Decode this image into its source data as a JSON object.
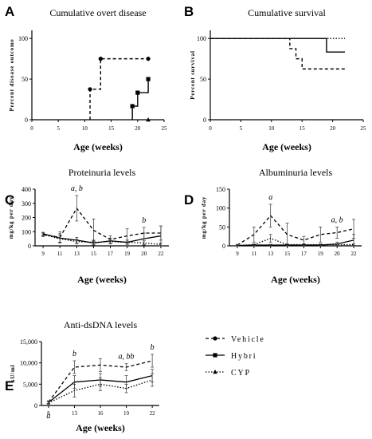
{
  "chart_data": [
    {
      "panel": "A",
      "type": "line",
      "step": true,
      "title": "Cumulative overt disease",
      "xlabel": "Age (weeks)",
      "ylabel": "Percent disease outcome",
      "xlim": [
        0,
        25
      ],
      "ylim": [
        0,
        110
      ],
      "xticks": [
        "0",
        "5",
        "10",
        "15",
        "20",
        "25"
      ],
      "yticks": [
        "0",
        "50",
        "100"
      ],
      "series": [
        {
          "name": "Vehicle",
          "x": [
            11,
            13,
            22
          ],
          "y": [
            37.5,
            75,
            75
          ]
        },
        {
          "name": "Hybri",
          "x": [
            19,
            20,
            22
          ],
          "y": [
            16.7,
            33.3,
            50
          ]
        },
        {
          "name": "CYP",
          "x": [
            22
          ],
          "y": [
            0
          ]
        }
      ]
    },
    {
      "panel": "B",
      "type": "line",
      "step": true,
      "title": "Cumulative survival",
      "xlabel": "Age (weeks)",
      "ylabel": "Percent survival",
      "xlim": [
        0,
        25
      ],
      "ylim": [
        0,
        110
      ],
      "xticks": [
        "0",
        "5",
        "10",
        "15",
        "20",
        "25"
      ],
      "yticks": [
        "0",
        "50",
        "100"
      ],
      "series": [
        {
          "name": "Vehicle",
          "x": [
            0,
            13,
            14,
            15,
            22
          ],
          "y": [
            100,
            87.5,
            75,
            62.5,
            62.5
          ]
        },
        {
          "name": "Hybri",
          "x": [
            0,
            19,
            22
          ],
          "y": [
            100,
            83.3,
            83.3
          ]
        },
        {
          "name": "CYP",
          "x": [
            0,
            20,
            22
          ],
          "y": [
            100,
            100,
            100
          ]
        }
      ]
    },
    {
      "panel": "C",
      "type": "line",
      "title": "Proteinuria levels",
      "xlabel": "Age (weeks)",
      "ylabel": "mg/kg per day",
      "ylim": [
        0,
        400
      ],
      "yticks": [
        "0",
        "100",
        "200",
        "300",
        "400"
      ],
      "categories": [
        "9",
        "11",
        "13",
        "15",
        "17",
        "19",
        "20",
        "22"
      ],
      "series": [
        {
          "name": "Vehicle",
          "values": [
            80,
            60,
            265,
            110,
            45,
            70,
            90,
            90
          ],
          "err": [
            15,
            40,
            90,
            80,
            25,
            50,
            40,
            50
          ]
        },
        {
          "name": "Hybri",
          "values": [
            85,
            55,
            40,
            20,
            35,
            25,
            50,
            70
          ],
          "err": [
            10,
            30,
            20,
            15,
            20,
            15,
            40,
            70
          ]
        },
        {
          "name": "CYP",
          "values": [
            80,
            50,
            30,
            25,
            30,
            25,
            20,
            10
          ],
          "err": [
            10,
            25,
            15,
            15,
            15,
            15,
            15,
            10
          ]
        }
      ],
      "annotations": [
        {
          "text": "a, b",
          "x": "13"
        },
        {
          "text": "b",
          "x": "20"
        }
      ]
    },
    {
      "panel": "D",
      "type": "line",
      "title": "Albuminuria levels",
      "xlabel": "Age (weeks)",
      "ylabel": "mg/kg per day",
      "ylim": [
        0,
        150
      ],
      "yticks": [
        "0",
        "50",
        "100",
        "150"
      ],
      "categories": [
        "9",
        "11",
        "13",
        "15",
        "17",
        "19",
        "20",
        "22"
      ],
      "series": [
        {
          "name": "Vehicle",
          "values": [
            2,
            30,
            80,
            30,
            15,
            30,
            35,
            45
          ],
          "err": [
            2,
            20,
            30,
            30,
            10,
            20,
            15,
            25
          ]
        },
        {
          "name": "Hybri",
          "values": [
            1,
            2,
            2,
            2,
            2,
            2,
            5,
            15
          ],
          "err": [
            1,
            2,
            2,
            2,
            2,
            2,
            5,
            15
          ]
        },
        {
          "name": "CYP",
          "values": [
            1,
            3,
            20,
            3,
            3,
            3,
            3,
            3
          ],
          "err": [
            1,
            2,
            10,
            2,
            2,
            2,
            2,
            2
          ]
        }
      ],
      "annotations": [
        {
          "text": "a",
          "x": "13"
        },
        {
          "text": "a, b",
          "x": "20"
        }
      ]
    },
    {
      "panel": "E",
      "type": "line",
      "title": "Anti-dsDNA levels",
      "xlabel": "Age (weeks)",
      "ylabel": "kU/ml",
      "ylim": [
        0,
        15000
      ],
      "yticks": [
        "0",
        "5,000",
        "10,000",
        "15,000"
      ],
      "categories": [
        "8",
        "13",
        "16",
        "19",
        "22"
      ],
      "series": [
        {
          "name": "Vehicle",
          "values": [
            800,
            9000,
            9500,
            9000,
            10500
          ],
          "err": [
            300,
            1500,
            1500,
            800,
            1500
          ]
        },
        {
          "name": "Hybri",
          "values": [
            700,
            5500,
            6000,
            5500,
            7000
          ],
          "err": [
            300,
            1500,
            1500,
            1500,
            1500
          ]
        },
        {
          "name": "CYP",
          "values": [
            600,
            3500,
            5000,
            4000,
            6000
          ],
          "err": [
            300,
            1500,
            1500,
            1000,
            1500
          ]
        }
      ],
      "annotations": [
        {
          "text": "a",
          "x": "8"
        },
        {
          "text": "b",
          "x": "13"
        },
        {
          "text": "a, bb",
          "x": "19"
        },
        {
          "text": "b",
          "x": "22"
        }
      ]
    }
  ],
  "legend": [
    {
      "label": "Vehicle",
      "marker": "circle",
      "line": "dashed"
    },
    {
      "label": "Hybri",
      "marker": "square",
      "line": "solid"
    },
    {
      "label": "CYP",
      "marker": "triangle",
      "line": "dotted"
    }
  ]
}
